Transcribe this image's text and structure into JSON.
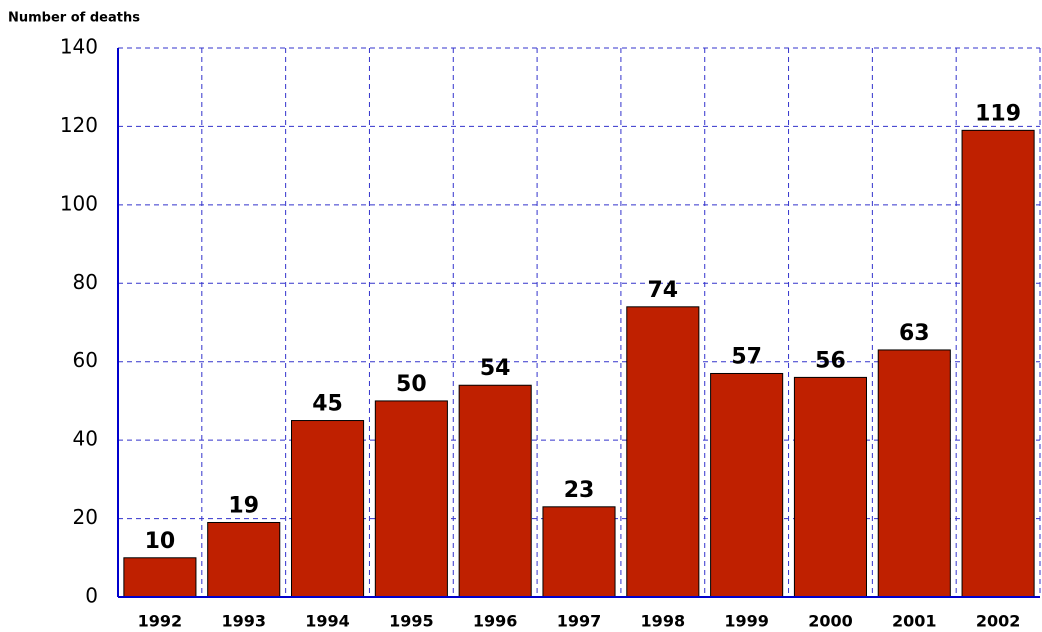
{
  "chart_data": {
    "type": "bar",
    "y_label": "Number of deaths",
    "categories": [
      "1992",
      "1993",
      "1994",
      "1995",
      "1996",
      "1997",
      "1998",
      "1999",
      "2000",
      "2001",
      "2002"
    ],
    "values": [
      10,
      19,
      45,
      50,
      54,
      23,
      74,
      57,
      56,
      63,
      119
    ],
    "color": "#bf2000",
    "ylim": [
      0,
      140
    ],
    "yticks": [
      0,
      20,
      40,
      60,
      80,
      100,
      120,
      140
    ],
    "grid": true
  }
}
